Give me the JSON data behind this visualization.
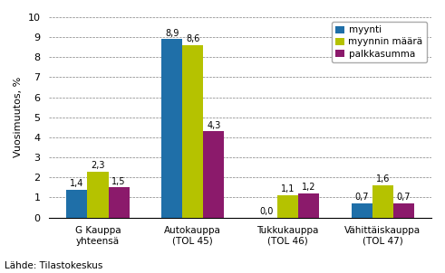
{
  "categories": [
    "G Kauppa\nyhteensä",
    "Autokauppa\n(TOL 45)",
    "Tukkukauppa\n(TOL 46)",
    "Vähittäiskauppa\n(TOL 47)"
  ],
  "series": {
    "myynti": [
      1.4,
      8.9,
      0.0,
      0.7
    ],
    "myynnin määrä": [
      2.3,
      8.6,
      1.1,
      1.6
    ],
    "palkkasumma": [
      1.5,
      4.3,
      1.2,
      0.7
    ]
  },
  "colors": {
    "myynti": "#1f6fa8",
    "myynnin määrä": "#b5c200",
    "palkkasumma": "#8b1a6b"
  },
  "ylabel": "Vuosimuutos, %",
  "ylim": [
    0,
    10
  ],
  "yticks": [
    0,
    1,
    2,
    3,
    4,
    5,
    6,
    7,
    8,
    9,
    10
  ],
  "footnote": "Lähde: Tilastokeskus",
  "bar_width": 0.22
}
